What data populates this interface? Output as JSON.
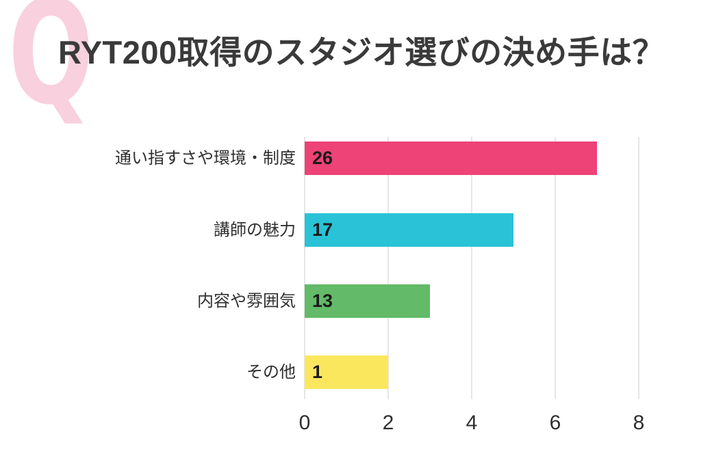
{
  "header": {
    "q_mark": "Q",
    "q_color": "#f9d0de",
    "title": "RYT200取得のスタジオ選びの決め手は？",
    "title_color": "#3a3a3a"
  },
  "chart_data": {
    "type": "bar",
    "orientation": "horizontal",
    "title": "RYT200取得のスタジオ選びの決め手は？",
    "categories": [
      "通い指すさや環境・制度",
      "講師の魅力",
      "内容や雰囲気",
      "その他"
    ],
    "values": [
      26,
      17,
      13,
      1
    ],
    "bar_lengths_axis_units": [
      7,
      5,
      3,
      2
    ],
    "bar_colors": [
      "#ed4377",
      "#29c2d6",
      "#63ba68",
      "#fbe75e"
    ],
    "x_ticks": [
      0,
      2,
      4,
      6,
      8
    ],
    "xlim": [
      0,
      8.6
    ],
    "grid": true,
    "legend": "none",
    "xlabel": "",
    "ylabel": "",
    "gridline_color": "#e6e6e6",
    "tick_label_color": "#2e2e2e",
    "category_label_color": "#2f2f2f",
    "value_label_color": "#1a1a1a"
  }
}
